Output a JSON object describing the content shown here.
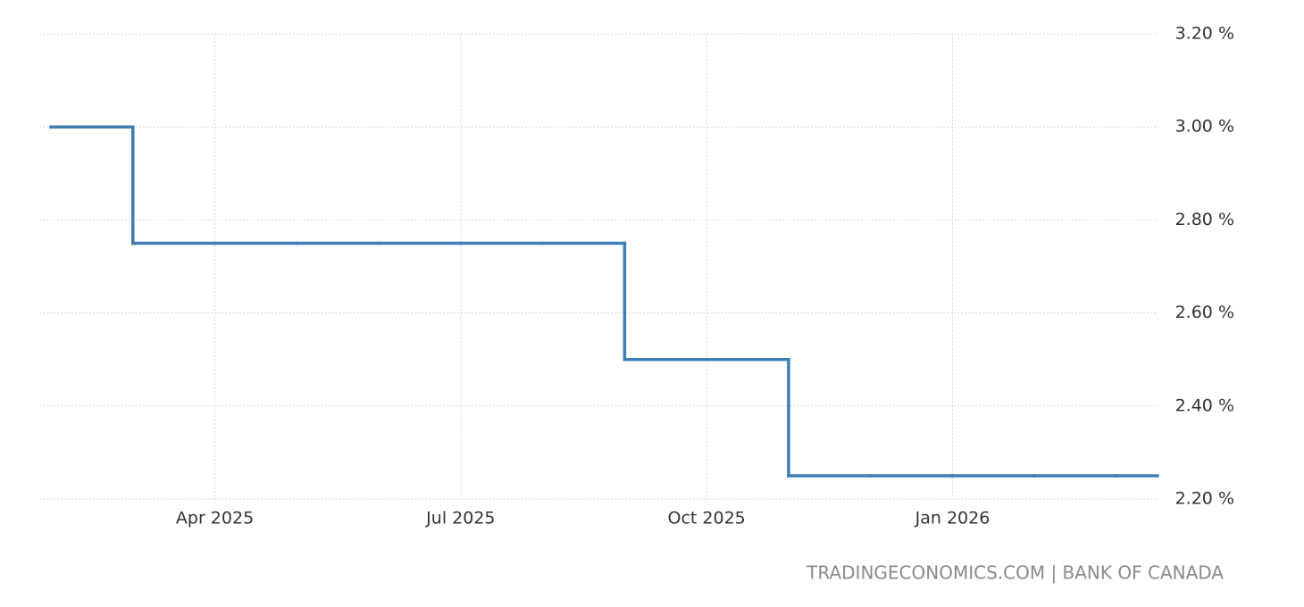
{
  "chart_data": {
    "type": "step",
    "source": "TRADINGECONOMICS.COM | BANK OF CANADA",
    "x": [
      "2025-02",
      "2025-03",
      "2025-04",
      "2025-05",
      "2025-06",
      "2025-07",
      "2025-08",
      "2025-09",
      "2025-10",
      "2025-11",
      "2025-12",
      "2026-01",
      "2026-02",
      "2026-03"
    ],
    "series": [
      {
        "color": "#3f7db5",
        "values": [
          3.0,
          2.75,
          2.75,
          2.75,
          2.75,
          2.75,
          2.75,
          2.5,
          2.5,
          2.25,
          2.25,
          2.25,
          2.25,
          2.25
        ]
      }
    ],
    "xlim": [
      "2025-02",
      "2026-03"
    ],
    "xticks": [
      {
        "value": "2025-04",
        "label": "Apr 2025"
      },
      {
        "value": "2025-07",
        "label": "Jul 2025"
      },
      {
        "value": "2025-10",
        "label": "Oct 2025"
      },
      {
        "value": "2026-01",
        "label": "Jan 2026"
      }
    ],
    "ylim": [
      2.2,
      3.2
    ],
    "yticks": [
      {
        "value": 2.2,
        "label": "2.20 %"
      },
      {
        "value": 2.4,
        "label": "2.40 %"
      },
      {
        "value": 2.6,
        "label": "2.60 %"
      },
      {
        "value": 2.8,
        "label": "2.80 %"
      },
      {
        "value": 3.0,
        "label": "3.00 %"
      },
      {
        "value": 3.2,
        "label": "3.20 %"
      }
    ],
    "grid": true
  }
}
